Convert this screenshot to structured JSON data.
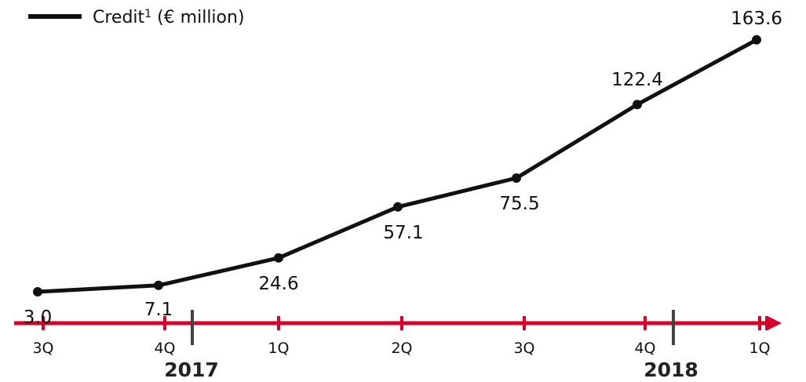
{
  "legend": {
    "label": "Credit",
    "superscript": "1",
    "unit": "(€ million)"
  },
  "colors": {
    "line": "#111111",
    "axis": "#d7002a",
    "marker": "#444444"
  },
  "chart_data": {
    "type": "line",
    "categories": [
      "3Q",
      "4Q",
      "1Q",
      "2Q",
      "3Q",
      "4Q",
      "1Q"
    ],
    "year_labels": [
      "2017",
      "2018"
    ],
    "series": [
      {
        "name": "Credit (€ million)",
        "values": [
          3.0,
          7.1,
          24.6,
          57.1,
          75.5,
          122.4,
          163.6
        ]
      }
    ],
    "data_labels": [
      "3.0",
      "7.1",
      "24.6",
      "57.1",
      "75.5",
      "122.4",
      "163.6"
    ],
    "ylim": [
      0,
      175
    ],
    "grid": false,
    "legend_position": "top-left"
  }
}
